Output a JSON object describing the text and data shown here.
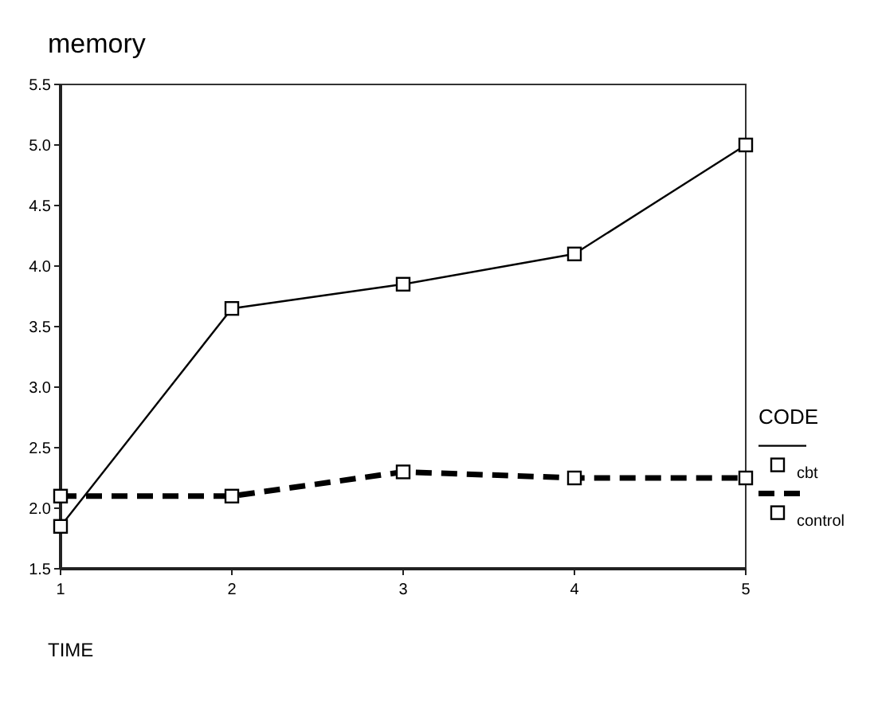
{
  "chart_data": {
    "type": "line",
    "title": "memory",
    "xlabel": "TIME",
    "legend_title": "CODE",
    "x": [
      1,
      2,
      3,
      4,
      5
    ],
    "xlim": [
      1,
      5
    ],
    "xticks": [
      1,
      2,
      3,
      4,
      5
    ],
    "ylim": [
      1.5,
      5.5
    ],
    "yticks": [
      {
        "value": 1.5,
        "label": "1.5"
      },
      {
        "value": 2,
        "label": "2.0"
      },
      {
        "value": 2.5,
        "label": "2.5"
      },
      {
        "value": 3,
        "label": "3.0"
      },
      {
        "value": 3.5,
        "label": "3.5"
      },
      {
        "value": 4,
        "label": "4.0"
      },
      {
        "value": 4.5,
        "label": "4.5"
      },
      {
        "value": 5,
        "label": "5.0"
      },
      {
        "value": 5.5,
        "label": "5.5"
      }
    ],
    "grid": false,
    "legend": "right",
    "marker": "square",
    "series": [
      {
        "name": "cbt",
        "color": "#000000",
        "line_style": "solid",
        "values": [
          1.85,
          3.65,
          3.85,
          4.1,
          5.0
        ]
      },
      {
        "name": "control",
        "color": "#000000",
        "line_style": "dashed",
        "values": [
          2.1,
          2.1,
          2.3,
          2.25,
          2.25
        ]
      }
    ]
  }
}
